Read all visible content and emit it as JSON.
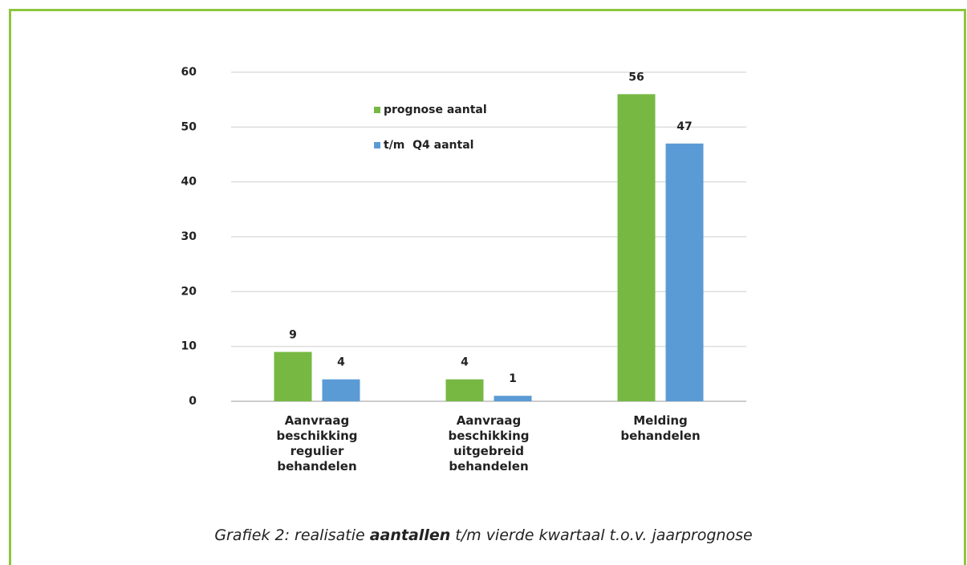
{
  "chart_data": {
    "type": "bar",
    "categories": [
      "Aanvraag beschikking regulier behandelen",
      "Aanvraag beschikking uitgebreid behandelen",
      "Melding behandelen"
    ],
    "series": [
      {
        "name": "prognose aantal",
        "color": "#77b843",
        "values": [
          9,
          4,
          56
        ]
      },
      {
        "name": "t/m  Q4 aantal",
        "color": "#5b9bd5",
        "values": [
          4,
          1,
          47
        ]
      }
    ],
    "ylim": [
      0,
      60
    ],
    "yticks": [
      0,
      10,
      20,
      30,
      40,
      50,
      60
    ],
    "grid": true,
    "legend": "top",
    "caption": {
      "prefix": "Grafiek 2: realisatie ",
      "emphasis": "aantallen",
      "suffix": " t/m vierde kwartaal t.o.v. jaarprognose"
    }
  }
}
